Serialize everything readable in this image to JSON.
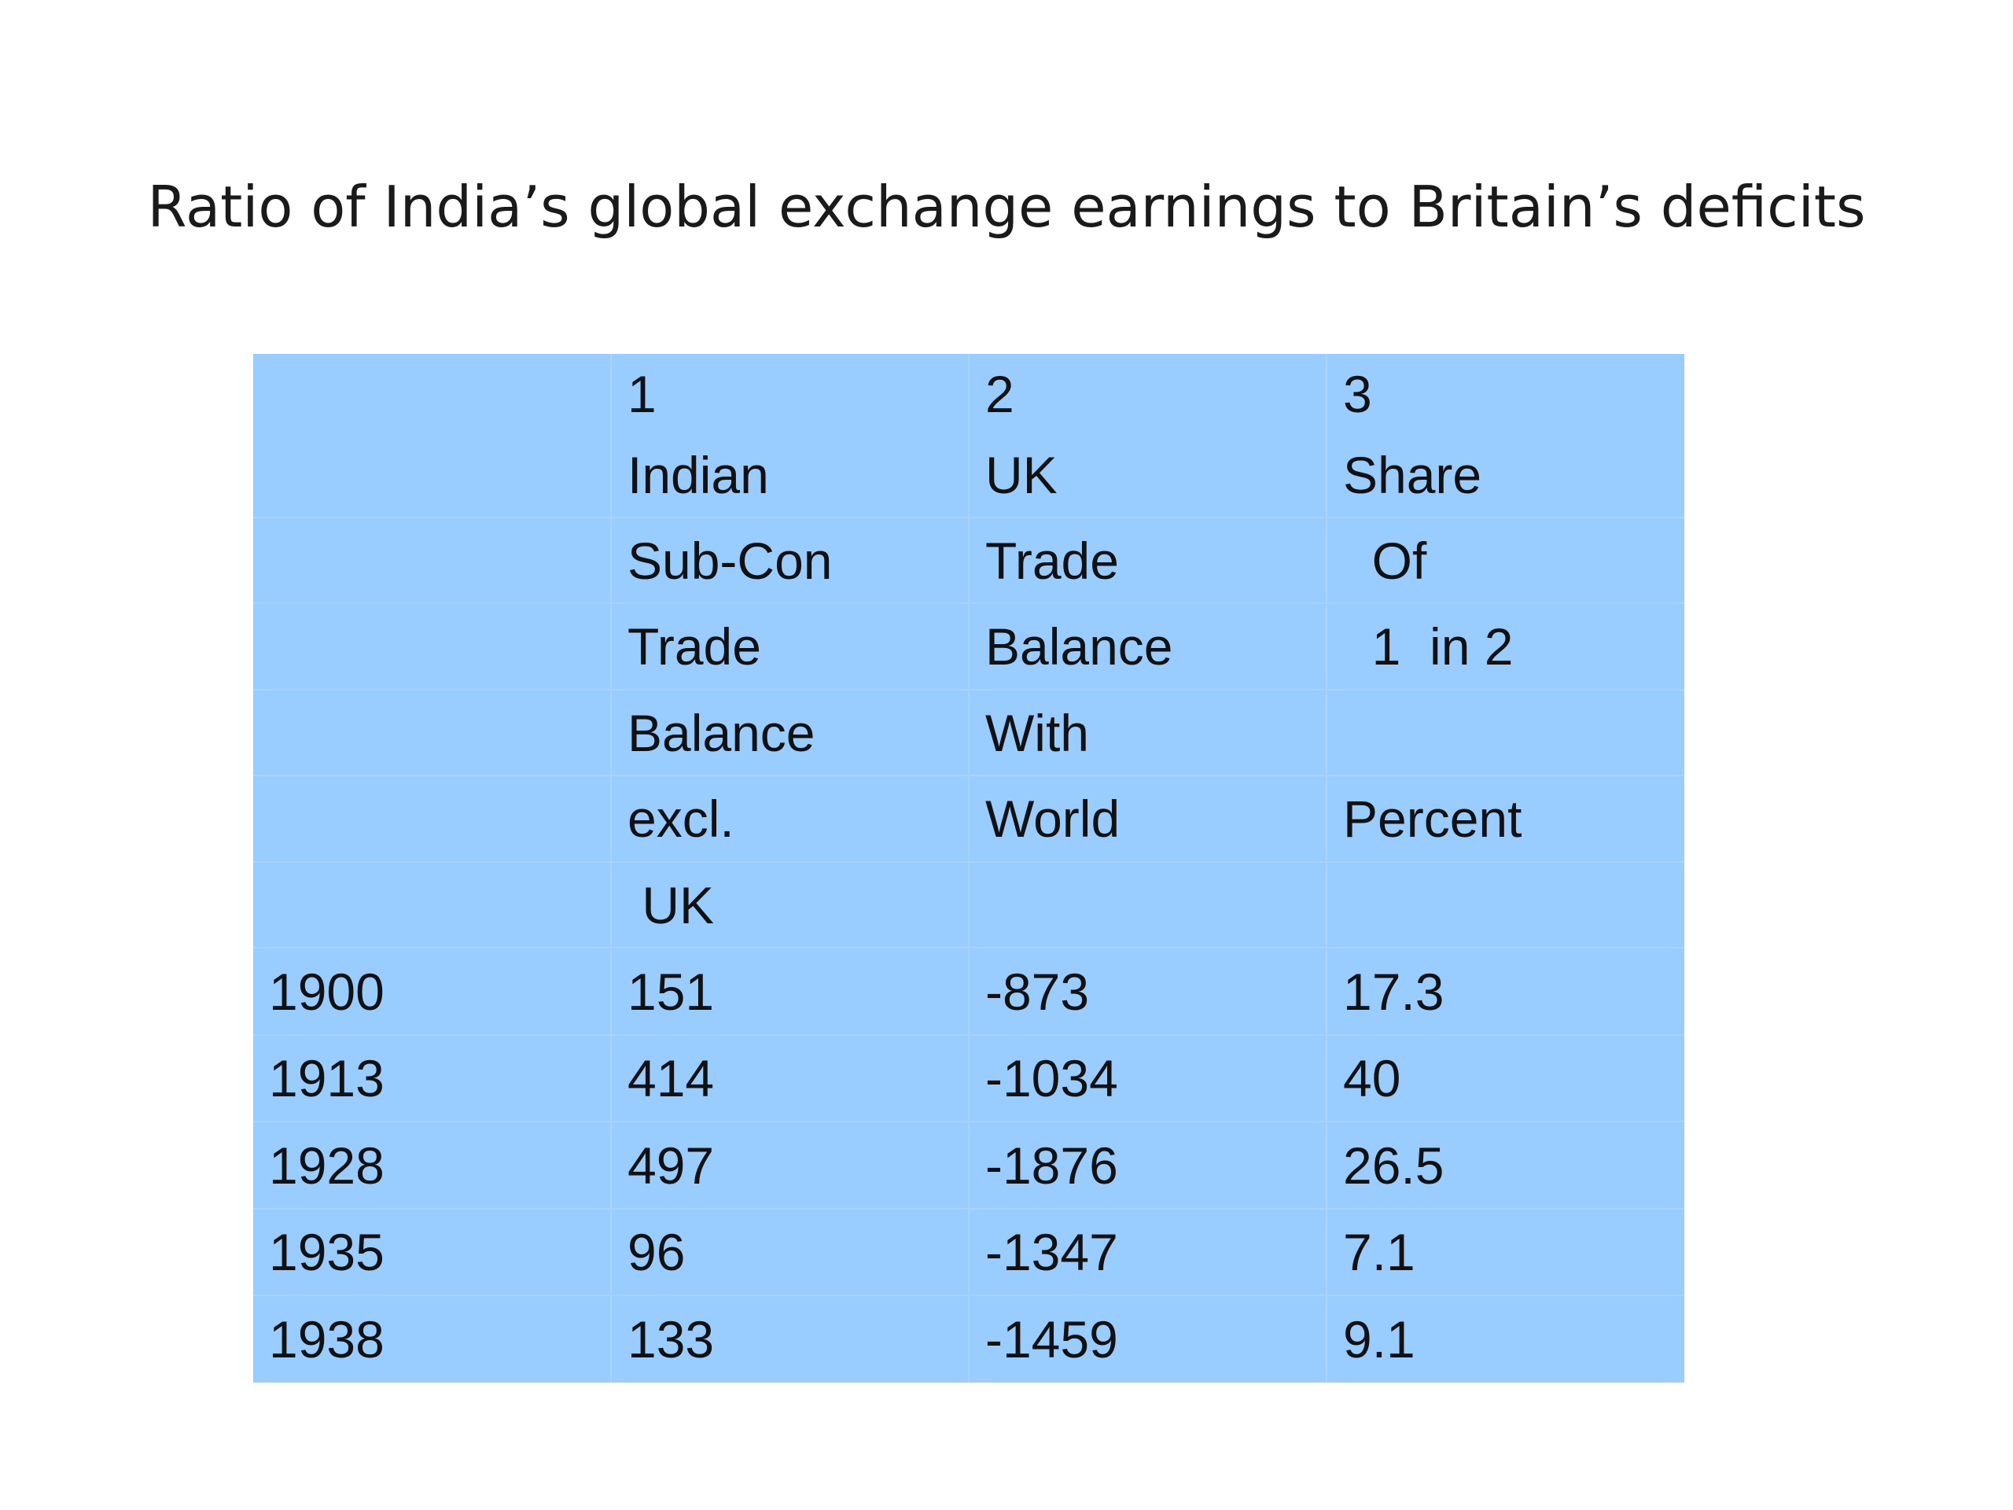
{
  "title": "Ratio of India’s global exchange earnings to Britain’s deficits",
  "table": {
    "header_rows": [
      [
        "",
        "1\nIndian",
        "2\nUK",
        "3\nShare"
      ],
      [
        "",
        "Sub-Con",
        "Trade",
        "  Of"
      ],
      [
        "",
        "Trade",
        "Balance",
        "  1  in 2"
      ],
      [
        "",
        "Balance",
        "With",
        ""
      ],
      [
        "",
        "excl.",
        "World",
        "Percent"
      ],
      [
        "",
        " UK",
        "",
        ""
      ]
    ],
    "rows": [
      {
        "year": "1900",
        "india": "151",
        "uk": "-873",
        "share": "17.3"
      },
      {
        "year": "1913",
        "india": "414",
        "uk": "-1034",
        "share": "40"
      },
      {
        "year": "1928",
        "india": "497",
        "uk": "-1876",
        "share": "26.5"
      },
      {
        "year": "1935",
        "india": "96",
        "uk": "-1347",
        "share": "7.1"
      },
      {
        "year": "1938",
        "india": "133",
        "uk": "-1459",
        "share": "9.1"
      }
    ]
  },
  "colors": {
    "table_background": "#99ccff",
    "grid_line": "#a8d3ff",
    "text": "#111111"
  }
}
